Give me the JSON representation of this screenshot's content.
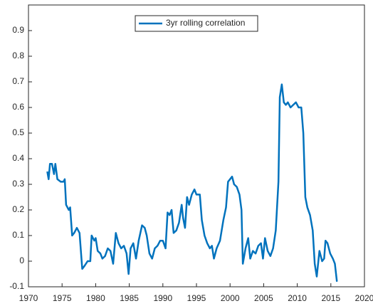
{
  "chart_data": {
    "type": "line",
    "x": [
      1972.8,
      1973.0,
      1973.2,
      1973.5,
      1973.8,
      1974.0,
      1974.3,
      1974.8,
      1975.2,
      1975.4,
      1975.6,
      1976.0,
      1976.2,
      1976.5,
      1976.8,
      1977.2,
      1977.6,
      1978.0,
      1978.3,
      1978.8,
      1979.2,
      1979.4,
      1979.8,
      1980.0,
      1980.3,
      1980.7,
      1981.0,
      1981.4,
      1981.8,
      1982.2,
      1982.6,
      1983.0,
      1983.4,
      1983.8,
      1984.2,
      1984.6,
      1984.9,
      1985.2,
      1985.6,
      1986.0,
      1986.4,
      1986.9,
      1987.3,
      1987.6,
      1988.0,
      1988.4,
      1988.8,
      1989.2,
      1989.6,
      1990.0,
      1990.4,
      1990.7,
      1991.0,
      1991.3,
      1991.6,
      1992.0,
      1992.4,
      1992.8,
      1993.0,
      1993.3,
      1993.6,
      1993.9,
      1994.3,
      1994.7,
      1995.0,
      1995.5,
      1995.8,
      1996.2,
      1996.6,
      1997.0,
      1997.3,
      1997.6,
      1998.0,
      1998.5,
      1999.0,
      1999.4,
      1999.7,
      2000.0,
      2000.3,
      2000.6,
      2001.0,
      2001.4,
      2001.7,
      2001.9,
      2002.3,
      2002.7,
      2003.0,
      2003.4,
      2003.8,
      2004.2,
      2004.6,
      2004.9,
      2005.2,
      2005.6,
      2006.0,
      2006.4,
      2006.8,
      2007.2,
      2007.4,
      2007.7,
      2008.0,
      2008.3,
      2008.6,
      2009.0,
      2009.4,
      2009.8,
      2010.2,
      2010.6,
      2010.9,
      2011.2,
      2011.5,
      2011.9,
      2012.3,
      2012.6,
      2012.9,
      2013.3,
      2013.7,
      2014.0,
      2014.2,
      2014.5,
      2014.9,
      2015.3,
      2015.6,
      2015.9
    ],
    "series": [
      {
        "name": "3yr rolling correlation",
        "color": "#0072bd",
        "values": [
          0.35,
          0.32,
          0.38,
          0.38,
          0.34,
          0.38,
          0.32,
          0.31,
          0.31,
          0.32,
          0.22,
          0.2,
          0.21,
          0.1,
          0.11,
          0.13,
          0.11,
          -0.03,
          -0.02,
          0.0,
          0.0,
          0.1,
          0.08,
          0.09,
          0.04,
          0.03,
          0.01,
          0.02,
          0.05,
          0.04,
          -0.01,
          0.11,
          0.07,
          0.05,
          0.06,
          0.03,
          -0.05,
          0.05,
          0.07,
          0.01,
          0.08,
          0.14,
          0.13,
          0.1,
          0.03,
          0.01,
          0.05,
          0.06,
          0.08,
          0.08,
          0.05,
          0.19,
          0.18,
          0.2,
          0.11,
          0.12,
          0.15,
          0.22,
          0.17,
          0.13,
          0.25,
          0.22,
          0.26,
          0.28,
          0.26,
          0.26,
          0.16,
          0.1,
          0.07,
          0.05,
          0.06,
          0.01,
          0.05,
          0.08,
          0.16,
          0.21,
          0.31,
          0.32,
          0.33,
          0.3,
          0.29,
          0.26,
          0.2,
          -0.01,
          0.05,
          0.09,
          0.01,
          0.04,
          0.03,
          0.06,
          0.07,
          0.01,
          0.09,
          0.04,
          0.02,
          0.05,
          0.12,
          0.31,
          0.64,
          0.69,
          0.62,
          0.61,
          0.62,
          0.6,
          0.61,
          0.62,
          0.6,
          0.6,
          0.5,
          0.25,
          0.21,
          0.18,
          0.12,
          -0.01,
          -0.06,
          0.04,
          0.0,
          0.01,
          0.08,
          0.07,
          0.03,
          0.01,
          -0.01,
          -0.08
        ]
      }
    ],
    "xlim": [
      1970,
      2020
    ],
    "xticks": [
      1970,
      1975,
      1980,
      1985,
      1990,
      1995,
      2000,
      2005,
      2010,
      2015,
      2020
    ],
    "ylim": [
      -0.1,
      1.0
    ],
    "yticks": [
      -0.1,
      0,
      0.1,
      0.2,
      0.3,
      0.4,
      0.5,
      0.6,
      0.7,
      0.8,
      0.9
    ],
    "grid": false,
    "legend": "top"
  }
}
